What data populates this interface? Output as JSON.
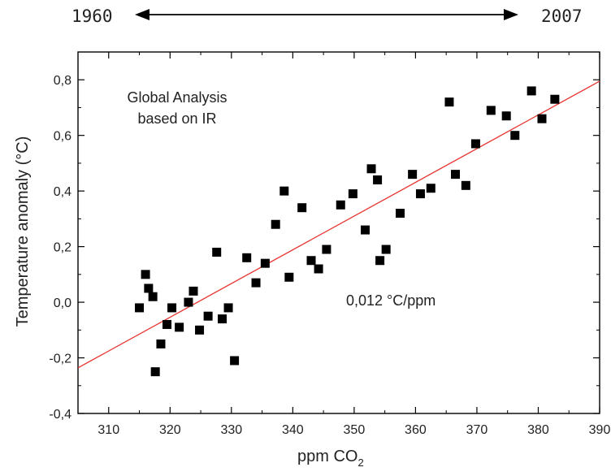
{
  "timeline": {
    "start": "1960",
    "end": "2007"
  },
  "chart_data": {
    "type": "scatter",
    "xlabel_main": "ppm CO",
    "xlabel_sub": "2",
    "ylabel": "Temperature anomaly (°C)",
    "xlim": [
      305,
      390
    ],
    "ylim": [
      -0.4,
      0.9
    ],
    "xticks": [
      310,
      320,
      330,
      340,
      350,
      360,
      370,
      380,
      390
    ],
    "yticks": [
      -0.4,
      -0.2,
      0.0,
      0.2,
      0.4,
      0.6,
      0.8
    ],
    "ytick_labels": [
      "-0,4",
      "-0,2",
      "0,0",
      "0,2",
      "0,4",
      "0,6",
      "0,8"
    ],
    "annotation_line1": "Global Analysis",
    "annotation_line2": "based on IR",
    "slope_label": "0,012 °C/ppm",
    "points": [
      [
        315.0,
        -0.02
      ],
      [
        316.0,
        0.1
      ],
      [
        316.5,
        0.05
      ],
      [
        317.2,
        0.02
      ],
      [
        317.6,
        -0.25
      ],
      [
        318.5,
        -0.15
      ],
      [
        319.5,
        -0.08
      ],
      [
        320.3,
        -0.02
      ],
      [
        321.5,
        -0.09
      ],
      [
        323.0,
        0.0
      ],
      [
        323.8,
        0.04
      ],
      [
        324.8,
        -0.1
      ],
      [
        326.2,
        -0.05
      ],
      [
        327.6,
        0.18
      ],
      [
        328.5,
        -0.06
      ],
      [
        329.5,
        -0.02
      ],
      [
        330.5,
        -0.21
      ],
      [
        332.5,
        0.16
      ],
      [
        334.0,
        0.07
      ],
      [
        335.5,
        0.14
      ],
      [
        337.2,
        0.28
      ],
      [
        338.6,
        0.4
      ],
      [
        339.4,
        0.09
      ],
      [
        341.5,
        0.34
      ],
      [
        343.0,
        0.15
      ],
      [
        344.2,
        0.12
      ],
      [
        345.5,
        0.19
      ],
      [
        347.8,
        0.35
      ],
      [
        349.8,
        0.39
      ],
      [
        351.8,
        0.26
      ],
      [
        352.8,
        0.48
      ],
      [
        353.8,
        0.44
      ],
      [
        354.2,
        0.15
      ],
      [
        355.2,
        0.19
      ],
      [
        357.5,
        0.32
      ],
      [
        359.5,
        0.46
      ],
      [
        360.8,
        0.39
      ],
      [
        362.5,
        0.41
      ],
      [
        365.5,
        0.72
      ],
      [
        366.5,
        0.46
      ],
      [
        368.2,
        0.42
      ],
      [
        369.8,
        0.57
      ],
      [
        372.3,
        0.69
      ],
      [
        374.8,
        0.67
      ],
      [
        376.2,
        0.6
      ],
      [
        378.9,
        0.76
      ],
      [
        380.6,
        0.66
      ],
      [
        382.7,
        0.73
      ]
    ],
    "trendline": {
      "x": [
        305,
        390
      ],
      "y": [
        -0.236,
        0.795
      ]
    }
  },
  "colors": {
    "marker": "#000000",
    "trendline": "#e8322e",
    "axis": "#000000"
  }
}
